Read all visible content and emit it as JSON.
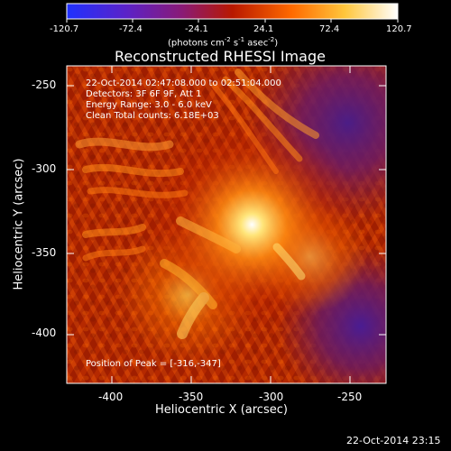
{
  "colorbar": {
    "tick_labels": [
      "-120.7",
      "-72.4",
      "-24.1",
      "24.1",
      "72.4",
      "120.7"
    ],
    "unit_prefix": "(photons cm",
    "unit_exp1": "-2",
    "unit_mid": " s",
    "unit_exp2": "-1",
    "unit_mid2": " asec",
    "unit_exp3": "-2",
    "unit_suffix": ")",
    "colors": [
      "#1f31ff",
      "#5b22c8",
      "#8a1a75",
      "#b81800",
      "#ff6a00",
      "#ffc63c",
      "#ffffff"
    ]
  },
  "plot": {
    "title": "Reconstructed RHESSI Image",
    "xlabel": "Heliocentric X (arcsec)",
    "ylabel": "Heliocentric Y (arcsec)",
    "x_ticks": [
      "-400",
      "-350",
      "-300",
      "-250"
    ],
    "y_ticks": [
      "-250",
      "-300",
      "-350",
      "-400"
    ],
    "info_line1": "22-Oct-2014 02:47:08.000 to 02:51:04.000",
    "info_line2": "Detectors: 3F 6F 9F, Att 1",
    "info_line3": "Energy Range: 3.0 - 6.0 keV",
    "info_line4": "Clean     Total counts: 6.18E+03",
    "peak_text": "Position of Peak = [-316,-347]"
  },
  "footer": {
    "timestamp": "22-Oct-2014 23:15"
  }
}
